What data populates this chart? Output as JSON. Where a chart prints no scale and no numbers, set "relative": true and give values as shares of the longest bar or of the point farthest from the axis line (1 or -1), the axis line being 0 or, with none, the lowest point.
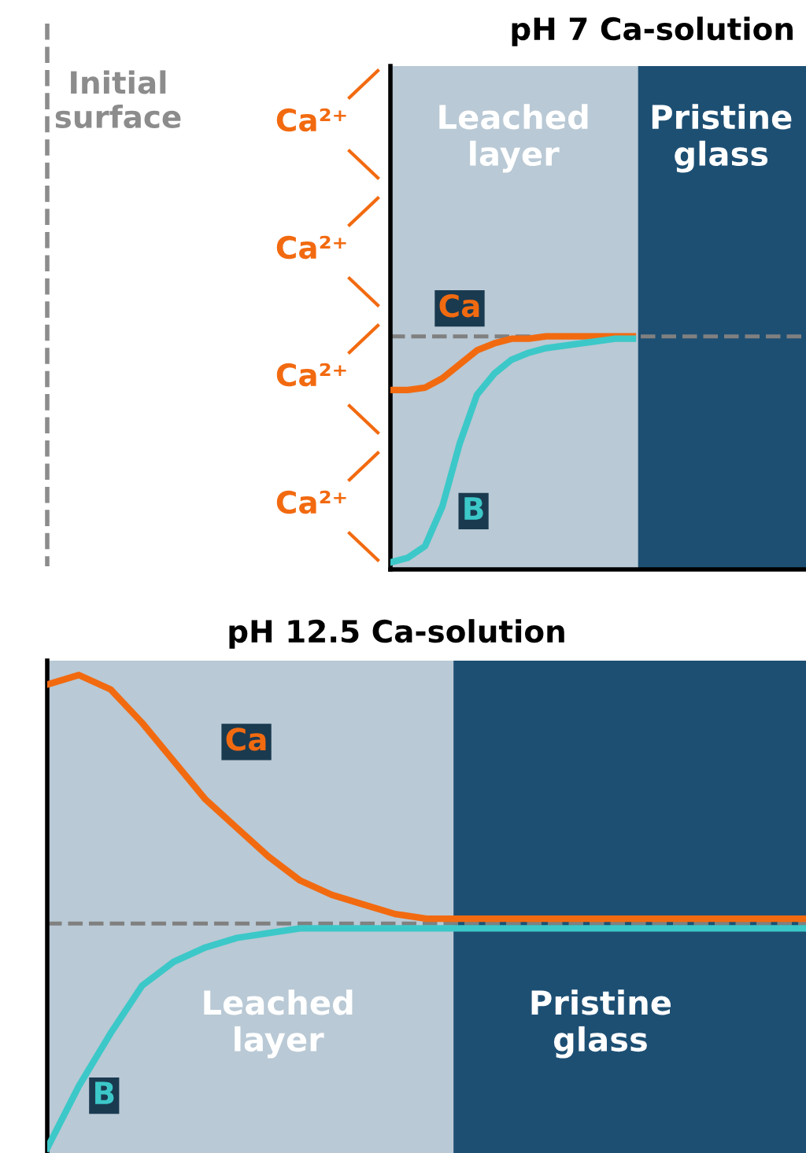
{
  "chart_data": [
    {
      "type": "line",
      "title": "pH 7 Ca-solution",
      "relative": true,
      "categories": [
        null,
        null,
        null,
        null,
        null,
        null,
        null,
        null,
        null,
        null,
        null,
        null,
        null,
        null,
        null,
        null,
        null,
        null,
        null,
        null,
        null,
        null,
        null,
        null,
        null
      ],
      "series": [
        {
          "name": "Ca",
          "color": "#f26a10",
          "values": [
            0.77,
            0.77,
            0.78,
            0.82,
            0.88,
            0.94,
            0.97,
            0.99,
            0.99,
            1.0,
            1.0,
            1.0,
            1.0,
            1.0,
            1.0,
            null,
            null,
            null,
            null,
            null,
            null,
            null,
            null,
            null,
            null
          ]
        },
        {
          "name": "B",
          "color": "#3cc8c8",
          "values": [
            0.03,
            0.05,
            0.1,
            0.27,
            0.54,
            0.75,
            0.84,
            0.9,
            0.93,
            0.95,
            0.96,
            0.97,
            0.98,
            0.99,
            0.99,
            null,
            null,
            null,
            null,
            null,
            null,
            null,
            null,
            null,
            null
          ]
        }
      ],
      "ref_lines": [
        {
          "axis": "y",
          "value": 1.0,
          "color": "#808080",
          "line_style": "dashed"
        }
      ],
      "annotations": [
        "Initial\nsurface",
        "Ca²⁺",
        "Ca²⁺",
        "Ca²⁺",
        "Ca²⁺",
        "Leached\nlayer",
        "Pristine\nglass"
      ],
      "marker": "none",
      "line_style": "solid"
    },
    {
      "type": "line",
      "title": "pH 12.5 Ca-solution",
      "relative": true,
      "categories": [
        null,
        null,
        null,
        null,
        null,
        null,
        null,
        null,
        null,
        null,
        null,
        null,
        null,
        null,
        null,
        null,
        null,
        null,
        null,
        null,
        null,
        null,
        null,
        null,
        null
      ],
      "series": [
        {
          "name": "Ca",
          "color": "#f26a10",
          "values": [
            0.98,
            1.0,
            0.97,
            0.9,
            0.82,
            0.74,
            0.68,
            0.62,
            0.57,
            0.54,
            0.52,
            0.5,
            0.49,
            0.49,
            0.49,
            0.49,
            0.49,
            0.49,
            0.49,
            0.49,
            0.49,
            0.49,
            0.49,
            0.49,
            0.49
          ]
        },
        {
          "name": "B",
          "color": "#3cc8c8",
          "values": [
            0.01,
            0.14,
            0.25,
            0.35,
            0.4,
            0.43,
            0.45,
            0.46,
            0.47,
            0.47,
            0.47,
            0.47,
            0.47,
            0.47,
            0.47,
            0.47,
            0.47,
            0.47,
            0.47,
            0.47,
            0.47,
            0.47,
            0.47,
            0.47,
            0.47
          ]
        }
      ],
      "ref_lines": [
        {
          "axis": "y",
          "value": 0.48,
          "color": "#808080",
          "line_style": "dashed"
        }
      ],
      "annotations": [
        "Leached\nlayer",
        "Pristine\nglass"
      ],
      "marker": "none",
      "line_style": "solid"
    }
  ]
}
